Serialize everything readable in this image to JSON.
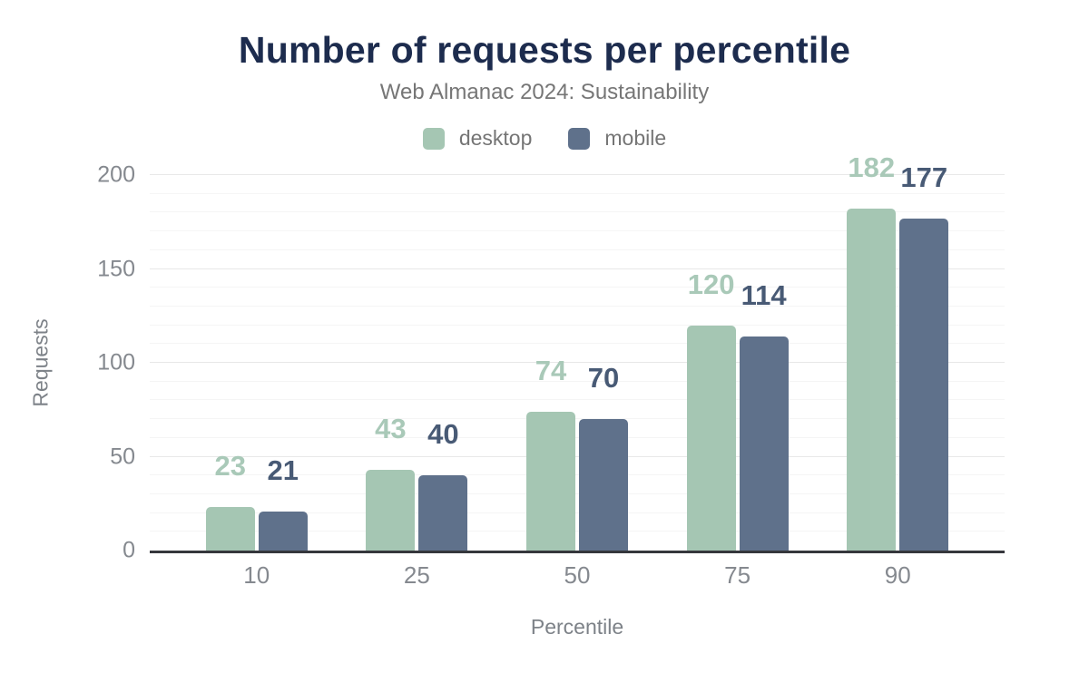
{
  "chart_data": {
    "type": "bar",
    "title": "Number of requests per percentile",
    "subtitle": "Web Almanac 2024: Sustainability",
    "categories": [
      "10",
      "25",
      "50",
      "75",
      "90"
    ],
    "series": [
      {
        "name": "desktop",
        "color": "#a5c6b3",
        "label_color": "#a9c9b8",
        "values": [
          23,
          43,
          74,
          120,
          182
        ]
      },
      {
        "name": "mobile",
        "color": "#5f718b",
        "label_color": "#485a75",
        "values": [
          21,
          40,
          70,
          114,
          177
        ]
      }
    ],
    "xlabel": "Percentile",
    "ylabel": "Requests",
    "ylim": [
      0,
      200
    ],
    "yticks": [
      0,
      50,
      100,
      150,
      200
    ],
    "grid_minor_step": 10,
    "grid_major_step": 50,
    "grid": true,
    "legend_position": "top"
  },
  "colors": {
    "title_text": "#1d2c4e",
    "subtitle_text": "#767676",
    "axis_text": "#85898f",
    "axis_line": "#35373c",
    "grid_major": "#e8e8e8",
    "grid_minor": "#f5f5f5",
    "background": "#ffffff"
  }
}
